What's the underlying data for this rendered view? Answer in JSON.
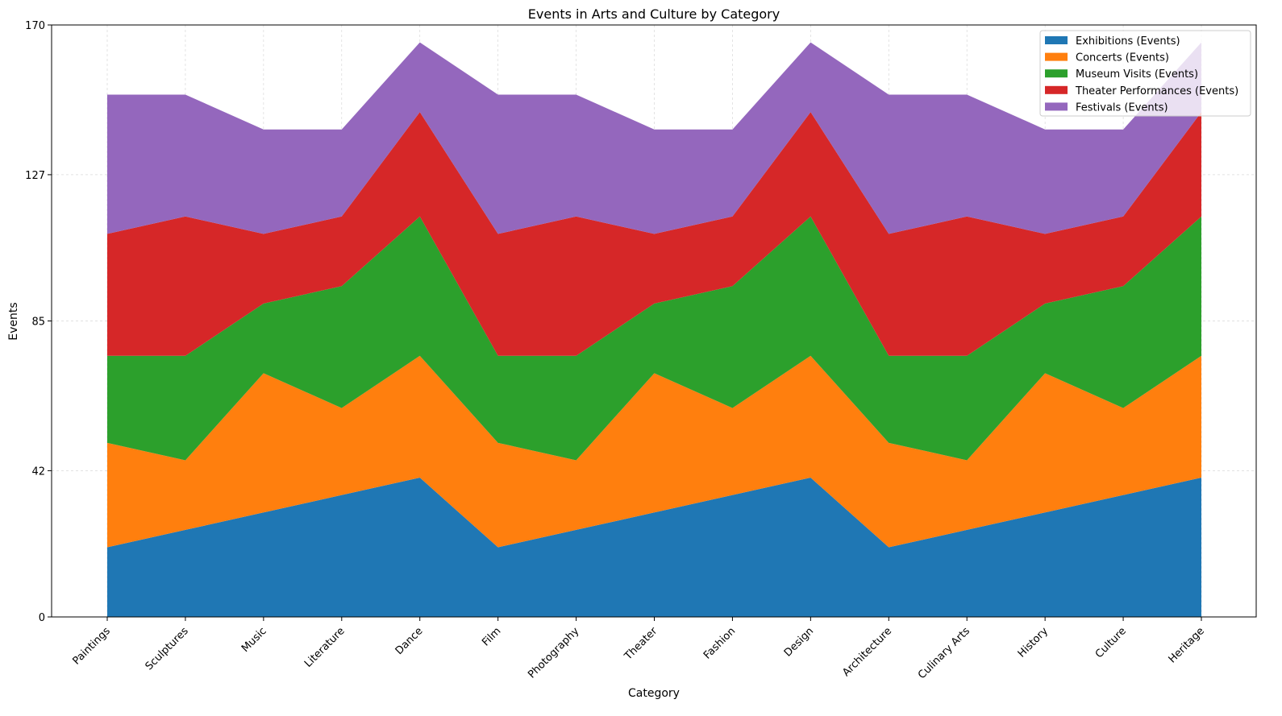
{
  "chart_data": {
    "type": "area",
    "stacked": true,
    "title": "Events in Arts and Culture by Category",
    "xlabel": "Category",
    "ylabel": "Events",
    "ylim": [
      0,
      170
    ],
    "yticks": [
      0,
      42,
      85,
      127,
      170
    ],
    "grid": true,
    "legend_position": "top-right",
    "categories": [
      "Paintings",
      "Sculptures",
      "Music",
      "Literature",
      "Dance",
      "Film",
      "Photography",
      "Theater",
      "Fashion",
      "Design",
      "Architecture",
      "Culinary Arts",
      "History",
      "Culture",
      "Heritage"
    ],
    "series": [
      {
        "name": "Exhibitions (Events)",
        "color": "#1f77b4",
        "values": [
          20,
          25,
          30,
          35,
          40,
          20,
          25,
          30,
          35,
          40,
          20,
          25,
          30,
          35,
          40
        ]
      },
      {
        "name": "Concerts (Events)",
        "color": "#ff7f0e",
        "values": [
          30,
          20,
          40,
          25,
          35,
          30,
          20,
          40,
          25,
          35,
          30,
          20,
          40,
          25,
          35
        ]
      },
      {
        "name": "Museum Visits (Events)",
        "color": "#2ca02c",
        "values": [
          25,
          30,
          20,
          35,
          40,
          25,
          30,
          20,
          35,
          40,
          25,
          30,
          20,
          35,
          40
        ]
      },
      {
        "name": "Theater Performances (Events)",
        "color": "#d62728",
        "values": [
          35,
          40,
          20,
          20,
          30,
          35,
          40,
          20,
          20,
          30,
          35,
          40,
          20,
          20,
          30
        ]
      },
      {
        "name": "Festivals (Events)",
        "color": "#9467bd",
        "values": [
          40,
          35,
          30,
          25,
          20,
          40,
          35,
          30,
          25,
          20,
          40,
          35,
          30,
          25,
          20
        ]
      }
    ]
  }
}
